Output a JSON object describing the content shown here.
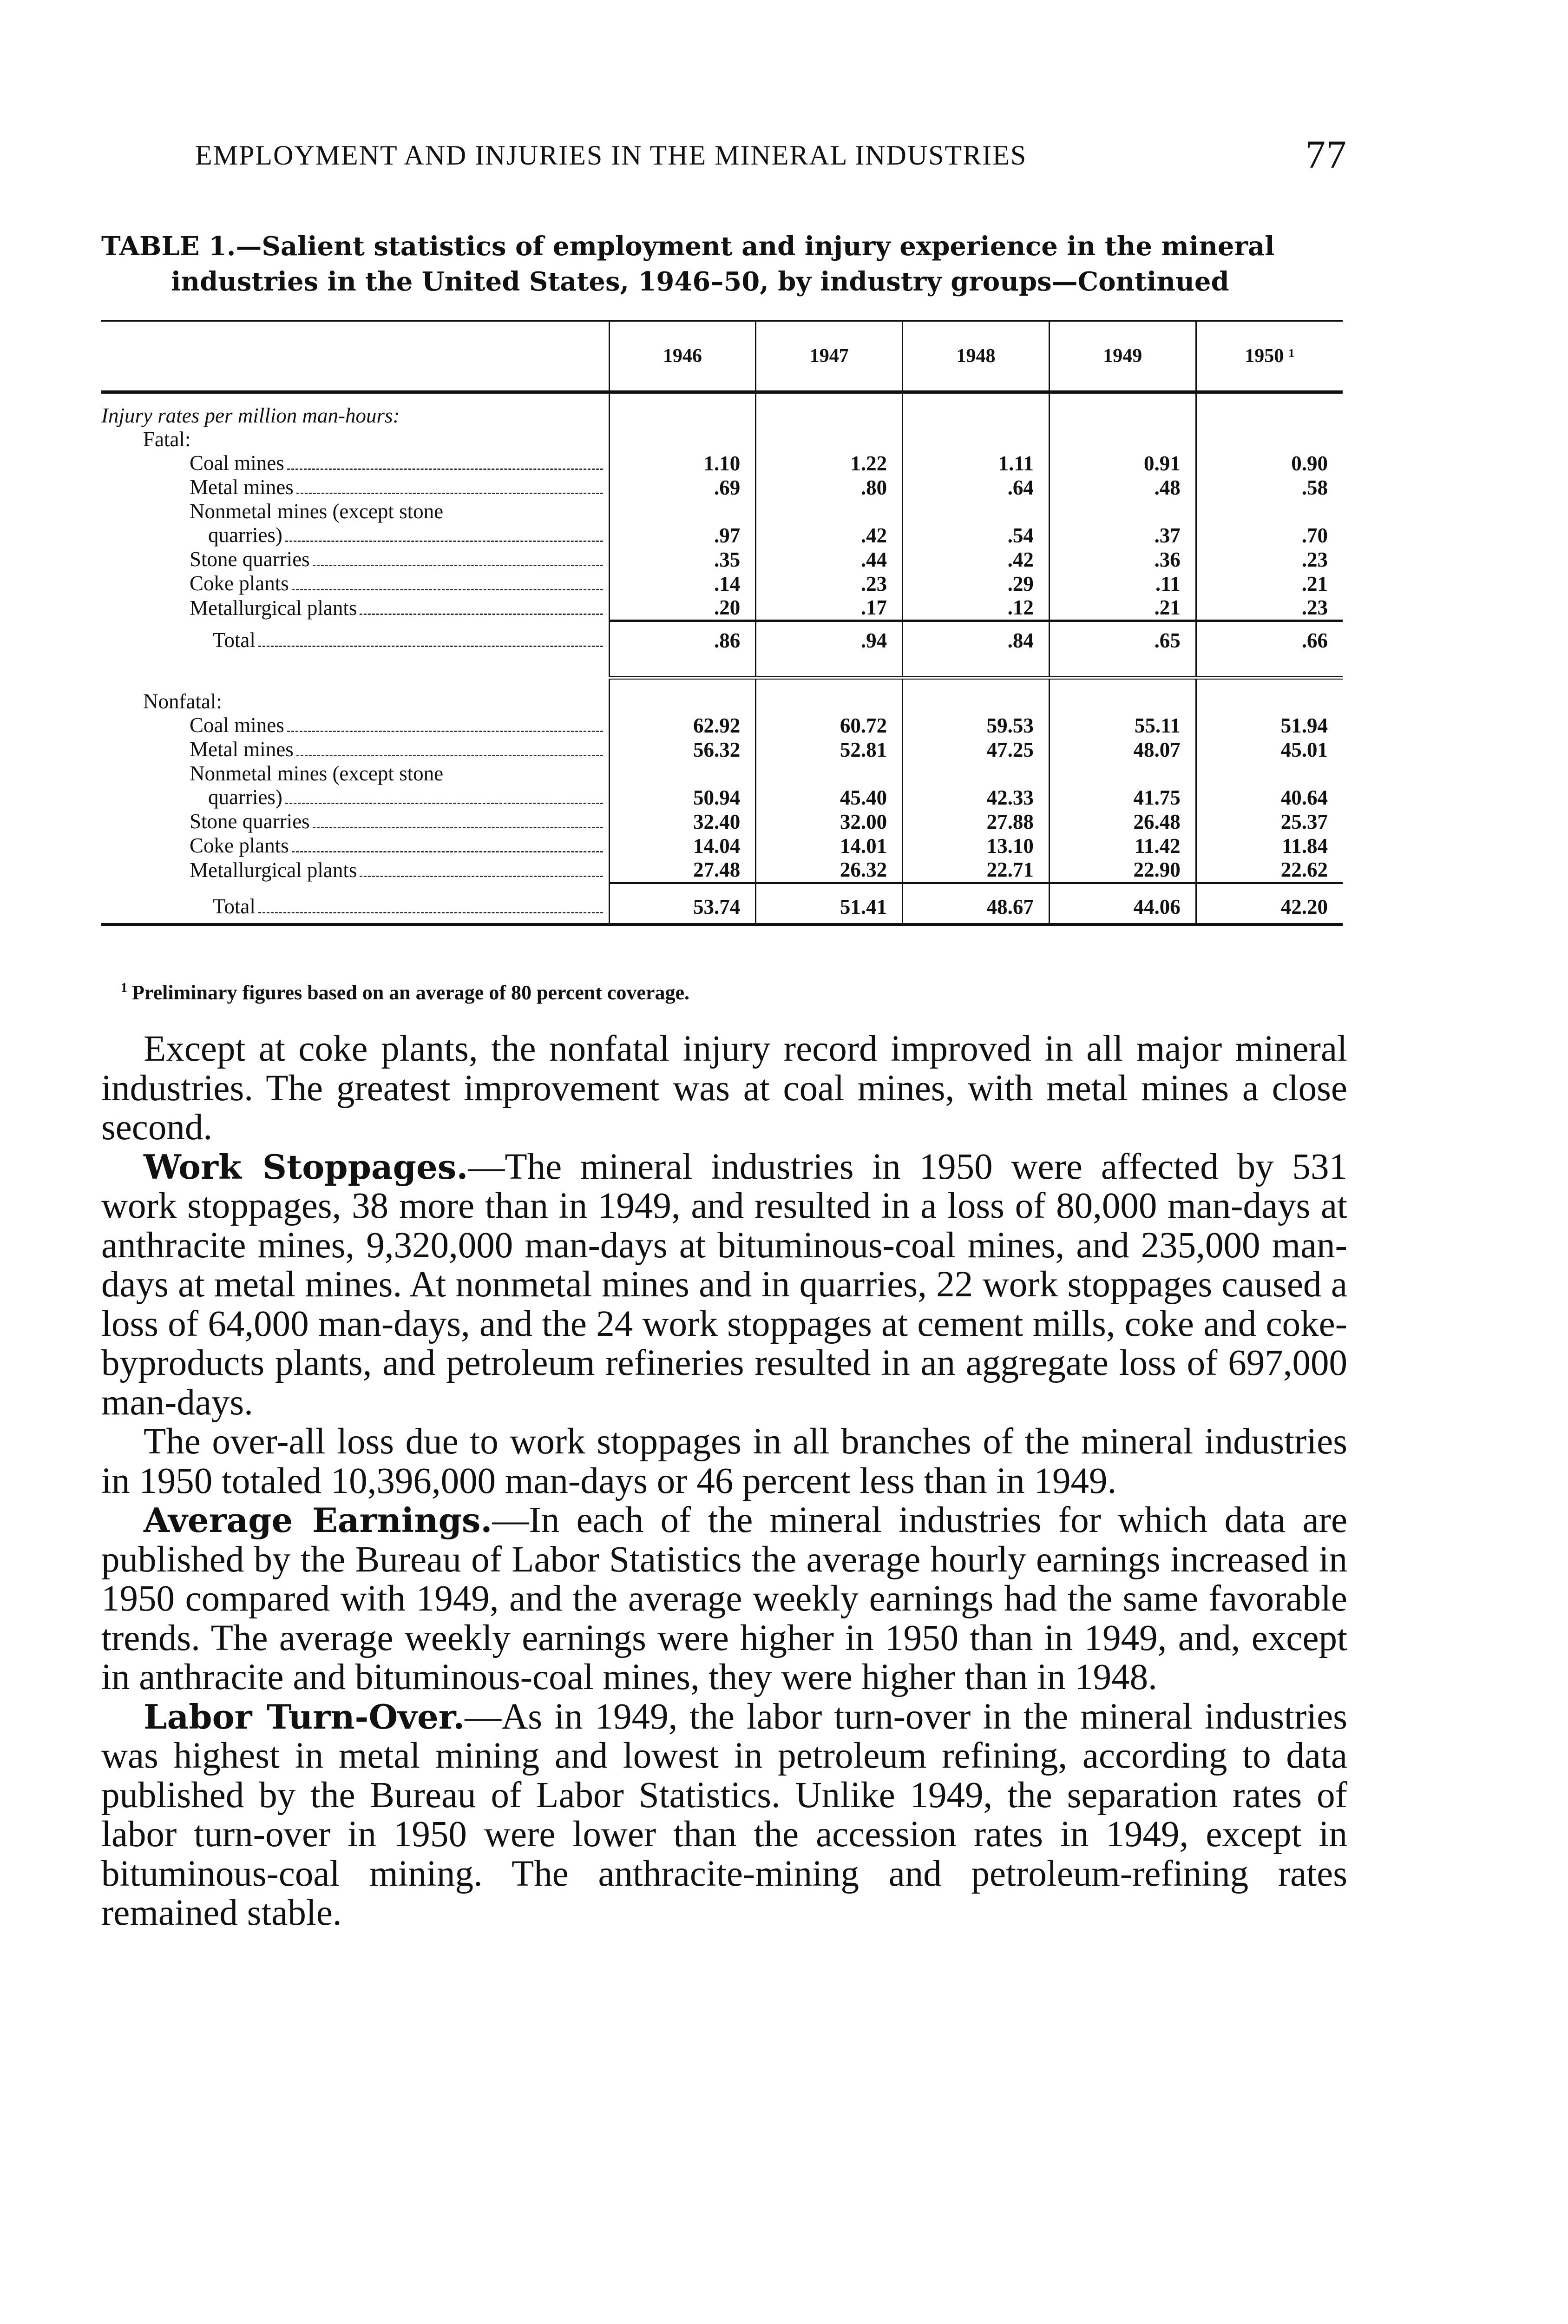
{
  "running_head": {
    "title": "EMPLOYMENT AND INJURIES IN THE MINERAL INDUSTRIES",
    "page_number": "77"
  },
  "table": {
    "title_line1": "TABLE 1.—Salient statistics of employment and injury experience in the mineral",
    "title_line2": "industries in the United States, 1946–50, by industry groups—Continued",
    "columns": [
      "1946",
      "1947",
      "1948",
      "1949",
      "1950 ¹"
    ],
    "rows": [
      {
        "label": "Injury rates per million man-hours:",
        "indent": 0,
        "values": []
      },
      {
        "label": "Fatal:",
        "indent": 1,
        "values": []
      },
      {
        "label": "Coal mines",
        "indent": 2,
        "leader": true,
        "values": [
          "1.10",
          "1.22",
          "1.11",
          "0.91",
          "0.90"
        ]
      },
      {
        "label": "Metal mines",
        "indent": 2,
        "leader": true,
        "values": [
          ".69",
          ".80",
          ".64",
          ".48",
          ".58"
        ]
      },
      {
        "label": "Nonmetal mines (except stone",
        "indent": 2,
        "values": []
      },
      {
        "label": "quarries)",
        "indent": 3,
        "leader": true,
        "values": [
          ".97",
          ".42",
          ".54",
          ".37",
          ".70"
        ]
      },
      {
        "label": "Stone quarries",
        "indent": 2,
        "leader": true,
        "values": [
          ".35",
          ".44",
          ".42",
          ".36",
          ".23"
        ]
      },
      {
        "label": "Coke plants",
        "indent": 2,
        "leader": true,
        "values": [
          ".14",
          ".23",
          ".29",
          ".11",
          ".21"
        ]
      },
      {
        "label": "Metallurgical plants",
        "indent": 2,
        "leader": true,
        "values": [
          ".20",
          ".17",
          ".12",
          ".21",
          ".23"
        ]
      },
      {
        "type": "rule"
      },
      {
        "label": "Total",
        "indent": 4,
        "leader": true,
        "type": "total",
        "values": [
          ".86",
          ".94",
          ".84",
          ".65",
          ".66"
        ]
      },
      {
        "type": "dbl"
      },
      {
        "label": "Nonfatal:",
        "indent": 1,
        "values": []
      },
      {
        "label": "Coal mines",
        "indent": 2,
        "leader": true,
        "values": [
          "62.92",
          "60.72",
          "59.53",
          "55.11",
          "51.94"
        ]
      },
      {
        "label": "Metal mines",
        "indent": 2,
        "leader": true,
        "values": [
          "56.32",
          "52.81",
          "47.25",
          "48.07",
          "45.01"
        ]
      },
      {
        "label": "Nonmetal mines (except stone",
        "indent": 2,
        "values": []
      },
      {
        "label": "quarries)",
        "indent": 3,
        "leader": true,
        "values": [
          "50.94",
          "45.40",
          "42.33",
          "41.75",
          "40.64"
        ]
      },
      {
        "label": "Stone quarries",
        "indent": 2,
        "leader": true,
        "values": [
          "32.40",
          "32.00",
          "27.88",
          "26.48",
          "25.37"
        ]
      },
      {
        "label": "Coke plants",
        "indent": 2,
        "leader": true,
        "values": [
          "14.04",
          "14.01",
          "13.10",
          "11.42",
          "11.84"
        ]
      },
      {
        "label": "Metallurgical plants",
        "indent": 2,
        "leader": true,
        "values": [
          "27.48",
          "26.32",
          "22.71",
          "22.90",
          "22.62"
        ]
      },
      {
        "type": "rule"
      },
      {
        "label": "Total",
        "indent": 4,
        "leader": true,
        "type": "total-last",
        "values": [
          "53.74",
          "51.41",
          "48.67",
          "44.06",
          "42.20"
        ]
      }
    ],
    "footnote_mark": "1",
    "footnote": "Preliminary figures based on an average of 80 percent coverage."
  },
  "paragraphs": [
    {
      "head": "",
      "text": "Except at coke plants, the nonfatal injury record improved in all major mineral industries. The greatest improvement was at coal mines, with metal mines a close second."
    },
    {
      "head": "Work Stoppages.",
      "text": "—The mineral industries in 1950 were affected by 531 work stoppages, 38 more than in 1949, and resulted in a loss of 80,000 man-days at anthracite mines, 9,320,000 man-days at bituminous-coal mines, and 235,000 man-days at metal mines. At nonmetal mines and in quarries, 22 work stoppages caused a loss of 64,000 man-days, and the 24 work stoppages at cement mills, coke and coke-byproducts plants, and petroleum refineries resulted in an aggregate loss of 697,000 man-days."
    },
    {
      "head": "",
      "text": "The over-all loss due to work stoppages in all branches of the mineral industries in 1950 totaled 10,396,000 man-days or 46 percent less than in 1949."
    },
    {
      "head": "Average Earnings.",
      "text": "—In each of the mineral industries for which data are published by the Bureau of Labor Statistics the average hourly earnings increased in 1950 compared with 1949, and the average weekly earnings had the same favorable trends. The average weekly earnings were higher in 1950 than in 1949, and, except in anthracite and bituminous-coal mines, they were higher than in 1948."
    },
    {
      "head": "Labor Turn-Over.",
      "text": "—As in 1949, the labor turn-over in the mineral industries was highest in metal mining and lowest in petroleum refining, according to data published by the Bureau of Labor Statistics. Unlike 1949, the separation rates of labor turn-over in 1950 were lower than the accession rates in 1949, except in bituminous-coal mining. The anthracite-mining and petroleum-refining rates remained stable."
    }
  ]
}
